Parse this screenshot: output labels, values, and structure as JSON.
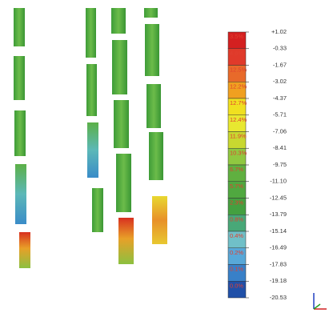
{
  "legend": {
    "values": [
      "+1.02",
      "-0.33",
      "-1.67",
      "-3.02",
      "-4.37",
      "-5.71",
      "-7.06",
      "-8.41",
      "-9.75",
      "-11.10",
      "-12.45",
      "-13.79",
      "-15.14",
      "-16.49",
      "-17.83",
      "-19.18",
      "-20.53"
    ],
    "percentages": [
      "3.5%",
      "4.6%",
      "12.5%",
      "12.2%",
      "12.7%",
      "12.4%",
      "11.9%",
      "10.3%",
      "6.7%",
      "5.7%",
      "2.3%",
      "0.8%",
      "0.4%",
      "0.2%",
      "0.1%",
      "0.0%"
    ]
  }
}
